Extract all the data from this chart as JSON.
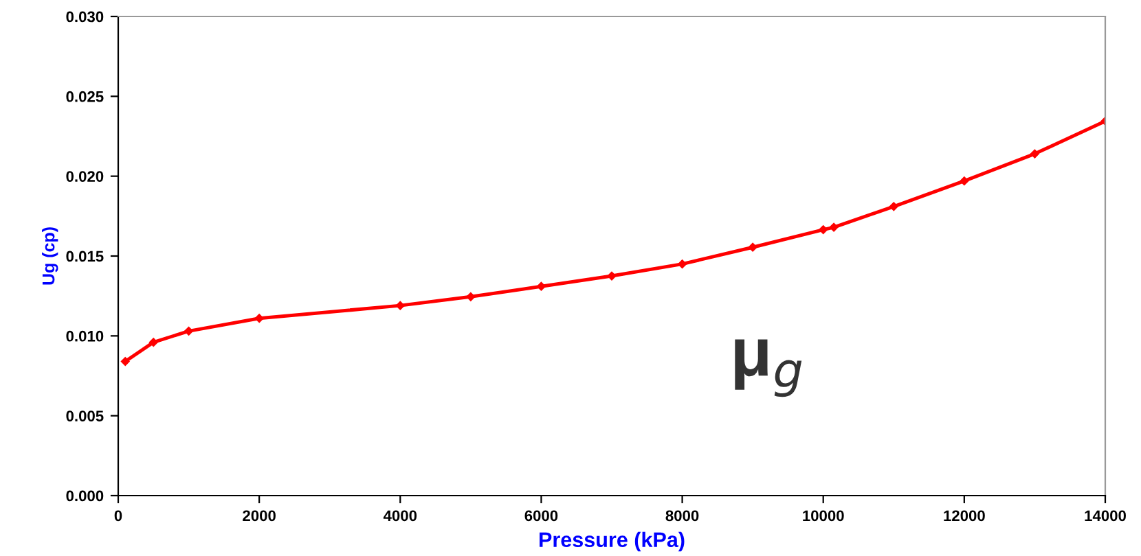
{
  "chart_data": {
    "type": "line",
    "xlabel": "Pressure (kPa)",
    "ylabel": "Ug (cp)",
    "annotations": [
      "μ$_{g}$"
    ],
    "x": [
      100,
      500,
      1000,
      2000,
      4000,
      5000,
      6000,
      7000,
      8000,
      9000,
      10000,
      10150,
      11000,
      12000,
      13000,
      14000
    ],
    "series": [
      {
        "color": "#ff0000",
        "values": [
          0.0084,
          0.0096,
          0.0103,
          0.0111,
          0.0119,
          0.01245,
          0.0131,
          0.01375,
          0.0145,
          0.01555,
          0.01665,
          0.0168,
          0.0181,
          0.0197,
          0.0214,
          0.02345
        ]
      }
    ],
    "xlim": [
      0,
      14000
    ],
    "xticks": [
      0,
      2000,
      4000,
      6000,
      8000,
      10000,
      12000,
      14000
    ],
    "ylim": [
      0,
      0.03
    ],
    "yticks": [
      {
        "value": 0,
        "label": "0.000"
      },
      {
        "value": 0.005,
        "label": "0.005"
      },
      {
        "value": 0.01,
        "label": "0.010"
      },
      {
        "value": 0.015,
        "label": "0.015"
      },
      {
        "value": 0.02,
        "label": "0.020"
      },
      {
        "value": 0.025,
        "label": "0.025"
      },
      {
        "value": 0.03,
        "label": "0.030"
      }
    ],
    "grid": false,
    "legend": false,
    "marker": "diamond",
    "line_style": "solid"
  }
}
